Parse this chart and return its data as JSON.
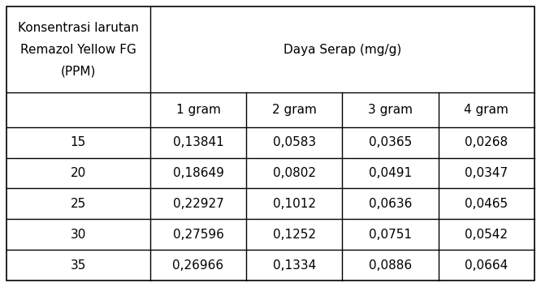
{
  "col_header_top": "Daya Serap (mg/g)",
  "col_header_sub": [
    "1 gram",
    "2 gram",
    "3 gram",
    "4 gram"
  ],
  "row_header_lines": [
    "Konsentrasi larutan",
    "Remazol Yellow FG",
    "(PPM)"
  ],
  "rows": [
    {
      "conc": "15",
      "values": [
        "0,13841",
        "0,0583",
        "0,0365",
        "0,0268"
      ]
    },
    {
      "conc": "20",
      "values": [
        "0,18649",
        "0,0802",
        "0,0491",
        "0,0347"
      ]
    },
    {
      "conc": "25",
      "values": [
        "0,22927",
        "0,1012",
        "0,0636",
        "0,0465"
      ]
    },
    {
      "conc": "30",
      "values": [
        "0,27596",
        "0,1252",
        "0,0751",
        "0,0542"
      ]
    },
    {
      "conc": "35",
      "values": [
        "0,26966",
        "0,1334",
        "0,0886",
        "0,0664"
      ]
    }
  ],
  "font_size": 11,
  "bg_color": "#ffffff",
  "line_color": "#000000",
  "fig_width": 6.66,
  "fig_height": 3.54,
  "dpi": 100
}
